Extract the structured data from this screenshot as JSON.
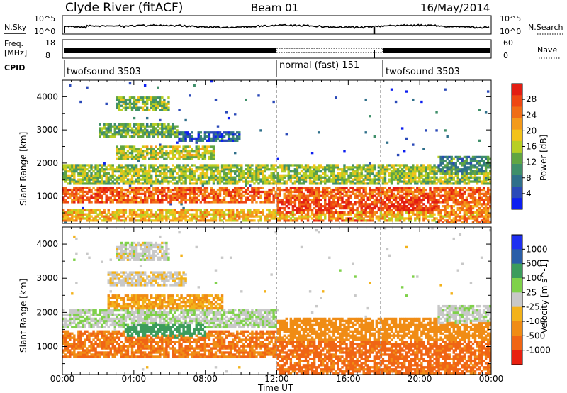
{
  "header": {
    "title": "Clyde River (fitACF)",
    "beam": "Beam 01",
    "date": "16/May/2014"
  },
  "summary_panel": {
    "nsky_label": "N.Sky",
    "nsearch_label": "N.Search",
    "left_ticks": [
      "10^5",
      "10^0"
    ],
    "right_ticks": [
      "10^5",
      "10^0"
    ],
    "freq_label_line1": "Freq.",
    "freq_label_line2": "[MHz]",
    "freq_ticks": [
      "18",
      "8"
    ],
    "nave_label": "Nave",
    "nave_ticks": [
      "60",
      "0"
    ],
    "cpid_label": "CPID",
    "cpid_segments": [
      {
        "label": "twofsound 3503",
        "start_hour": 0
      },
      {
        "label": "normal (fast) 151",
        "start_hour": 12
      },
      {
        "label": "twofsound 3503",
        "start_hour": 17.8
      }
    ]
  },
  "chart_data": [
    {
      "type": "heatmap",
      "title": "",
      "quantity": "Power",
      "colorbar_label": "Power [dB]",
      "xlabel": "",
      "ylabel": "Slant Range [km]",
      "xlim_hours": [
        0,
        24
      ],
      "ylim": [
        180,
        4500
      ],
      "yticks": [
        1000,
        2000,
        3000,
        4000
      ],
      "colorbar_ticks": [
        4,
        8,
        12,
        16,
        20,
        24,
        28
      ],
      "colorbar_range": [
        0,
        32
      ],
      "colorbar_colors": [
        "#0c1ef0",
        "#2a49b8",
        "#2f6f8a",
        "#3f8f6a",
        "#61a542",
        "#b8cf24",
        "#f3c21b",
        "#f39a1b",
        "#f06d15",
        "#ee4712",
        "#e31e12"
      ],
      "features": [
        {
          "t_start": 0.0,
          "t_end": 24.0,
          "r_center": 1050,
          "r_halfwidth": 220,
          "value": 26
        },
        {
          "t_start": 0.0,
          "t_end": 24.0,
          "r_center": 1650,
          "r_halfwidth": 280,
          "value": 15
        },
        {
          "t_start": 0.0,
          "t_end": 24.0,
          "r_center": 450,
          "r_halfwidth": 160,
          "value": 20
        },
        {
          "t_start": 3.0,
          "t_end": 8.5,
          "r_center": 2300,
          "r_halfwidth": 200,
          "value": 16
        },
        {
          "t_start": 2.0,
          "t_end": 6.5,
          "r_center": 3000,
          "r_halfwidth": 180,
          "value": 13
        },
        {
          "t_start": 3.0,
          "t_end": 6.0,
          "r_center": 3800,
          "r_halfwidth": 200,
          "value": 14
        },
        {
          "t_start": 6.5,
          "t_end": 10.0,
          "r_center": 2800,
          "r_halfwidth": 150,
          "value": 6
        },
        {
          "t_start": 12.0,
          "t_end": 17.5,
          "r_center": 650,
          "r_halfwidth": 350,
          "value": 28
        },
        {
          "t_start": 17.5,
          "t_end": 21.0,
          "r_center": 800,
          "r_halfwidth": 450,
          "value": 29
        },
        {
          "t_start": 21.0,
          "t_end": 24.0,
          "r_center": 1800,
          "r_halfwidth": 350,
          "value": 10
        },
        {
          "t_start": 21.0,
          "t_end": 24.0,
          "r_center": 500,
          "r_halfwidth": 300,
          "value": 24
        }
      ]
    },
    {
      "type": "heatmap",
      "title": "",
      "quantity": "Velocity",
      "colorbar_label": "Velocity [m s^-1]",
      "xlabel": "Time UT",
      "ylabel": "Slant Range [km]",
      "xlim_hours": [
        0,
        24
      ],
      "xticks": [
        "00:00",
        "04:00",
        "08:00",
        "12:00",
        "16:00",
        "20:00",
        "00:00"
      ],
      "ylim": [
        180,
        4500
      ],
      "yticks": [
        1000,
        2000,
        3000,
        4000
      ],
      "colorbar_ticks": [
        "1000",
        "500",
        "100",
        "25",
        "-25",
        "-100",
        "-500",
        "-1000"
      ],
      "colorbar_colors": [
        "#1e2ff0",
        "#2a5ea8",
        "#3c9c5c",
        "#7fd14a",
        "#c8c8c8",
        "#f3b21b",
        "#f08c15",
        "#f06515",
        "#e82010"
      ],
      "features": [
        {
          "t_start": 0.0,
          "t_end": 12.0,
          "r_center": 1100,
          "r_halfwidth": 350,
          "value": -300
        },
        {
          "t_start": 0.0,
          "t_end": 12.0,
          "r_center": 1800,
          "r_halfwidth": 250,
          "value": 10
        },
        {
          "t_start": 3.5,
          "t_end": 8.0,
          "r_center": 1500,
          "r_halfwidth": 300,
          "value": 150
        },
        {
          "t_start": 2.5,
          "t_end": 9.0,
          "r_center": 2300,
          "r_halfwidth": 200,
          "value": -60
        },
        {
          "t_start": 3.0,
          "t_end": 6.0,
          "r_center": 3800,
          "r_halfwidth": 250,
          "value": 0
        },
        {
          "t_start": 2.5,
          "t_end": 7.0,
          "r_center": 3000,
          "r_halfwidth": 180,
          "value": -10
        },
        {
          "t_start": 12.0,
          "t_end": 24.0,
          "r_center": 700,
          "r_halfwidth": 450,
          "value": -400
        },
        {
          "t_start": 12.0,
          "t_end": 24.0,
          "r_center": 1500,
          "r_halfwidth": 300,
          "value": -150
        },
        {
          "t_start": 21.0,
          "t_end": 24.0,
          "r_center": 1900,
          "r_halfwidth": 300,
          "value": 5
        }
      ]
    }
  ]
}
